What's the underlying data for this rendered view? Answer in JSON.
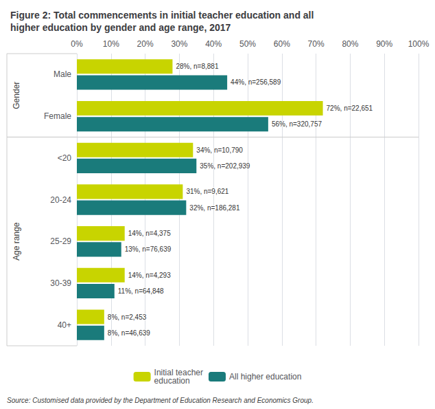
{
  "chart_data": {
    "type": "bar",
    "orientation": "horizontal",
    "title": "Figure 2: Total commencements in initial teacher education and all\nhigher education by gender and age range, 2017",
    "categories": [
      "Male",
      "Female",
      "<20",
      "20-24",
      "25-29",
      "30-39",
      "40+"
    ],
    "series": [
      {
        "name": "Initial teacher\neducation",
        "color": "#c8d400",
        "values": [
          28,
          72,
          34,
          31,
          14,
          14,
          8
        ],
        "value_labels": [
          "28%, n=8,881",
          "72%, n=22,651",
          "34%, n=10,790",
          "31%, n=9,621",
          "14%, n=4,375",
          "14%, n=4,293",
          "8%, n=2,453"
        ]
      },
      {
        "name": "All higher education",
        "color": "#1a7b7b",
        "values": [
          44,
          56,
          35,
          32,
          13,
          11,
          8
        ],
        "value_labels": [
          "44%, n=256,589",
          "56%, n=320,757",
          "35%, n=202,939",
          "32%, n=186,281",
          "13%, n=76,639",
          "11%, n=64,848",
          "8%, n=46,639"
        ]
      }
    ],
    "xlim": [
      0,
      100
    ],
    "xticks": [
      {
        "value": 0,
        "label": "0%"
      },
      {
        "value": 10,
        "label": "10%"
      },
      {
        "value": 20,
        "label": "20%"
      },
      {
        "value": 30,
        "label": "30%"
      },
      {
        "value": 40,
        "label": "40%"
      },
      {
        "value": 50,
        "label": "50%"
      },
      {
        "value": 60,
        "label": "60%"
      },
      {
        "value": 70,
        "label": "70%"
      },
      {
        "value": 80,
        "label": "80%"
      },
      {
        "value": 90,
        "label": "90%"
      },
      {
        "value": 100,
        "label": "100%"
      }
    ],
    "grid": true,
    "legend": "bottom",
    "data_labels": true,
    "annotations": [
      {
        "text": "Gender",
        "categories": [
          "Male",
          "Female"
        ]
      },
      {
        "text": "Age range",
        "categories": [
          "<20",
          "20-24",
          "25-29",
          "30-39",
          "40+"
        ]
      },
      {
        "text": "Source: Customised data provided by the Department of Education Research and Economics Group."
      }
    ]
  }
}
